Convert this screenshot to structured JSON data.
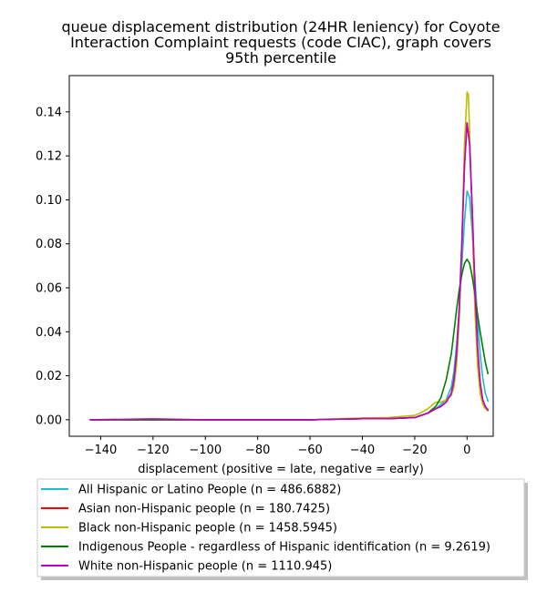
{
  "chart_data": {
    "type": "line",
    "title_lines": [
      "queue displacement distribution (24HR leniency) for Coyote",
      "Interaction Complaint  requests (code CIAC), graph covers",
      "95th percentile"
    ],
    "xlabel": "displacement (positive = late, negative = early)",
    "ylabel": "",
    "xlim": [
      -152,
      10
    ],
    "ylim": [
      -0.0075,
      0.1565
    ],
    "x_ticks": [
      -140,
      -120,
      -100,
      -80,
      -60,
      -40,
      -20,
      0
    ],
    "x_tick_labels": [
      "−140",
      "−120",
      "−100",
      "−80",
      "−60",
      "−40",
      "−20",
      "0"
    ],
    "y_ticks": [
      0.0,
      0.02,
      0.04,
      0.06,
      0.08,
      0.1,
      0.12,
      0.14
    ],
    "y_tick_labels": [
      "0.00",
      "0.02",
      "0.04",
      "0.06",
      "0.08",
      "0.10",
      "0.12",
      "0.14"
    ],
    "grid": false,
    "legend_position": "below",
    "series": [
      {
        "name": "All Hispanic or Latino People (n = 486.6882)",
        "color": "#17becf",
        "x": [
          -144,
          -120,
          -100,
          -60,
          -40,
          -30,
          -20,
          -15,
          -12,
          -10,
          -8,
          -6,
          -5,
          -4,
          -3,
          -2,
          -1,
          0,
          1,
          2,
          3,
          4,
          5,
          6,
          7,
          8
        ],
        "y": [
          0.0,
          0.0,
          0.0,
          0.0,
          0.0005,
          0.0005,
          0.001,
          0.003,
          0.005,
          0.007,
          0.009,
          0.015,
          0.022,
          0.034,
          0.05,
          0.07,
          0.09,
          0.104,
          0.101,
          0.085,
          0.065,
          0.045,
          0.03,
          0.019,
          0.012,
          0.0085
        ]
      },
      {
        "name": "Asian non-Hispanic people (n = 180.7425)",
        "color": "#ff0000",
        "x": [
          -144,
          -120,
          -100,
          -60,
          -40,
          -30,
          -20,
          -15,
          -12,
          -10,
          -8,
          -6,
          -5,
          -4,
          -3,
          -2,
          -1,
          0,
          1,
          2,
          3,
          4,
          5,
          6,
          7,
          8
        ],
        "y": [
          0.0,
          0.0,
          0.0,
          0.0,
          0.0005,
          0.0005,
          0.001,
          0.003,
          0.005,
          0.006,
          0.008,
          0.012,
          0.018,
          0.03,
          0.05,
          0.08,
          0.115,
          0.135,
          0.125,
          0.095,
          0.06,
          0.033,
          0.017,
          0.009,
          0.006,
          0.0045
        ]
      },
      {
        "name": "Black non-Hispanic people (n = 1458.5945)",
        "color": "#bcbd00",
        "x": [
          -144,
          -120,
          -100,
          -60,
          -40,
          -30,
          -20,
          -18,
          -15,
          -13,
          -12,
          -10,
          -8,
          -6,
          -5,
          -4,
          -3,
          -2,
          -1,
          0,
          0.5,
          1,
          2,
          3,
          4,
          5,
          6,
          7,
          8
        ],
        "y": [
          0.0,
          0.0,
          0.0,
          0.0,
          0.0008,
          0.001,
          0.002,
          0.003,
          0.005,
          0.007,
          0.008,
          0.008,
          0.009,
          0.011,
          0.015,
          0.025,
          0.045,
          0.08,
          0.125,
          0.149,
          0.148,
          0.13,
          0.09,
          0.05,
          0.025,
          0.012,
          0.007,
          0.005,
          0.004
        ]
      },
      {
        "name": "Indigenous People - regardless of Hispanic identification (n = 9.2619)",
        "color": "#008000",
        "x": [
          -144,
          -120,
          -100,
          -60,
          -40,
          -30,
          -20,
          -15,
          -12,
          -10,
          -8,
          -6,
          -5,
          -4,
          -3,
          -2,
          -1,
          0,
          1,
          2,
          3,
          4,
          5,
          6,
          7,
          8
        ],
        "y": [
          0.0,
          0.0,
          0.0,
          0.0,
          0.0005,
          0.0005,
          0.001,
          0.003,
          0.006,
          0.01,
          0.018,
          0.03,
          0.04,
          0.05,
          0.059,
          0.066,
          0.071,
          0.073,
          0.071,
          0.065,
          0.057,
          0.048,
          0.04,
          0.033,
          0.026,
          0.021
        ]
      },
      {
        "name": "White non-Hispanic people (n = 1110.945)",
        "color": "#c000c0",
        "x": [
          -144,
          -120,
          -100,
          -60,
          -40,
          -30,
          -20,
          -15,
          -12,
          -10,
          -8,
          -6,
          -5,
          -4,
          -3,
          -2,
          -1,
          0,
          1,
          2,
          3,
          4,
          5,
          6,
          7,
          8
        ],
        "y": [
          0.0,
          0.0004,
          0.0,
          0.0,
          0.0005,
          0.0005,
          0.001,
          0.003,
          0.005,
          0.006,
          0.008,
          0.012,
          0.018,
          0.03,
          0.05,
          0.08,
          0.115,
          0.135,
          0.125,
          0.095,
          0.06,
          0.033,
          0.017,
          0.009,
          0.006,
          0.0045
        ]
      }
    ]
  }
}
